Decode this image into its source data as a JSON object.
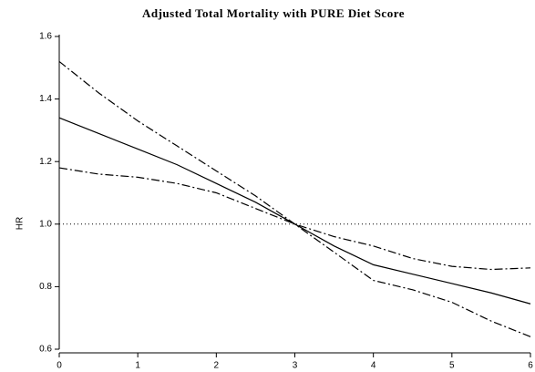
{
  "chart_data": {
    "type": "line",
    "title": "Adjusted Total Mortality with PURE Diet Score",
    "y_label": "HR",
    "x": [
      0,
      0.5,
      1,
      1.5,
      2,
      2.5,
      3,
      3.5,
      4,
      4.5,
      5,
      5.5,
      6
    ],
    "series": [
      {
        "color": "#000000",
        "dash": "solid",
        "values": [
          1.34,
          1.29,
          1.24,
          1.19,
          1.13,
          1.07,
          1.0,
          0.93,
          0.87,
          0.84,
          0.81,
          0.78,
          0.745
        ]
      },
      {
        "color": "#000000",
        "dash": "dashdot",
        "values": [
          1.52,
          1.42,
          1.33,
          1.25,
          1.17,
          1.09,
          1.0,
          0.91,
          0.82,
          0.79,
          0.75,
          0.69,
          0.64
        ]
      },
      {
        "color": "#000000",
        "dash": "dashdot",
        "values": [
          1.18,
          1.16,
          1.15,
          1.13,
          1.1,
          1.05,
          1.0,
          0.96,
          0.93,
          0.89,
          0.865,
          0.855,
          0.86
        ]
      }
    ],
    "reference_line": 1.0,
    "xlim": [
      0,
      6
    ],
    "xticks": [
      0,
      1,
      2,
      3,
      4,
      5,
      6
    ],
    "ylim": [
      0.6,
      1.6
    ],
    "yticks": [
      0.6,
      0.8,
      {
        "value": 1.0,
        "label": "1.0"
      },
      1.2,
      1.4,
      1.6
    ],
    "grid": false
  }
}
